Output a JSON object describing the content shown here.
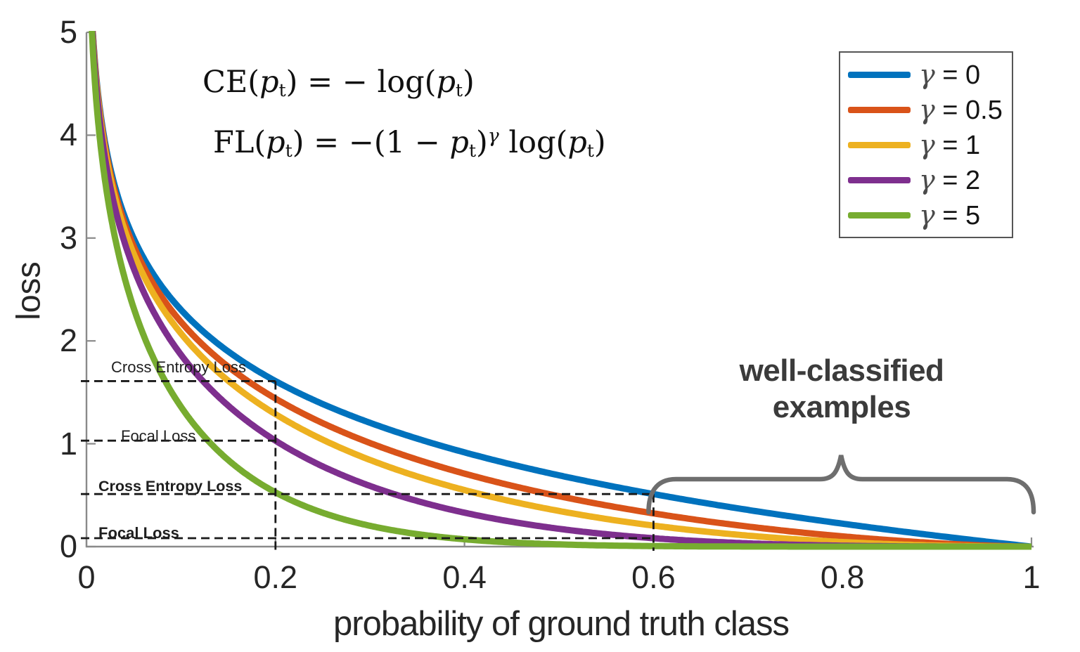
{
  "chart_data": {
    "type": "line",
    "title": "",
    "xlabel": "probability of ground truth class",
    "ylabel": "loss",
    "xlim": [
      0,
      1
    ],
    "ylim": [
      0,
      5
    ],
    "grid": false,
    "legend_position": "top-right",
    "xticks": {
      "values": [
        0,
        0.2,
        0.4,
        0.6,
        0.8,
        1
      ],
      "labels": [
        "0",
        "0.2",
        "0.4",
        "0.6",
        "0.8",
        "1"
      ]
    },
    "yticks": {
      "values": [
        0,
        1,
        2,
        3,
        4,
        5
      ],
      "labels": [
        "0",
        "1",
        "2",
        "3",
        "4",
        "5"
      ]
    },
    "sample_p": [
      0.05,
      0.1,
      0.2,
      0.3,
      0.4,
      0.5,
      0.6,
      0.7,
      0.8,
      0.9,
      1.0
    ],
    "series": [
      {
        "name": "γ = 0",
        "gamma": 0,
        "color": "#0072BD",
        "loss": [
          2.996,
          2.303,
          1.609,
          1.204,
          0.916,
          0.693,
          0.511,
          0.357,
          0.223,
          0.105,
          0
        ]
      },
      {
        "name": "γ = 0.5",
        "gamma": 0.5,
        "color": "#D95319",
        "loss": [
          2.92,
          2.185,
          1.439,
          1.007,
          0.71,
          0.49,
          0.323,
          0.195,
          0.1,
          0.033,
          0
        ]
      },
      {
        "name": "γ = 1",
        "gamma": 1,
        "color": "#EDB120",
        "loss": [
          2.846,
          2.072,
          1.288,
          0.843,
          0.55,
          0.347,
          0.204,
          0.107,
          0.045,
          0.011,
          0
        ]
      },
      {
        "name": "γ = 2",
        "gamma": 2,
        "color": "#7E2F8E",
        "loss": [
          2.704,
          1.865,
          1.03,
          0.59,
          0.33,
          0.173,
          0.082,
          0.032,
          0.009,
          0.001,
          0
        ]
      },
      {
        "name": "γ = 5",
        "gamma": 5,
        "color": "#77AC30",
        "loss": [
          2.318,
          1.36,
          0.527,
          0.202,
          0.071,
          0.022,
          0.005,
          0.001,
          0,
          0,
          0
        ]
      }
    ]
  },
  "legend": {
    "items": [
      {
        "sym": "γ",
        "rest": " = 0",
        "color": "#0072BD"
      },
      {
        "sym": "γ",
        "rest": " = 0.5",
        "color": "#D95319"
      },
      {
        "sym": "γ",
        "rest": " = 1",
        "color": "#EDB120"
      },
      {
        "sym": "γ",
        "rest": " = 2",
        "color": "#7E2F8E"
      },
      {
        "sym": "γ",
        "rest": " = 5",
        "color": "#77AC30"
      }
    ]
  },
  "formulas": {
    "ce": {
      "tokens": [
        {
          "t": "CE(",
          "k": "rm"
        },
        {
          "t": "p",
          "k": "it"
        },
        {
          "t": "t",
          "k": "sub"
        },
        {
          "t": ") = − log(",
          "k": "rm"
        },
        {
          "t": "p",
          "k": "it"
        },
        {
          "t": "t",
          "k": "sub"
        },
        {
          "t": ")",
          "k": "rm"
        }
      ]
    },
    "fl": {
      "tokens": [
        {
          "t": "FL(",
          "k": "rm"
        },
        {
          "t": "p",
          "k": "it"
        },
        {
          "t": "t",
          "k": "sub"
        },
        {
          "t": ") = −(1 − ",
          "k": "rm"
        },
        {
          "t": "p",
          "k": "it"
        },
        {
          "t": "t",
          "k": "sub"
        },
        {
          "t": ")",
          "k": "rm"
        },
        {
          "t": "γ",
          "k": "sup"
        },
        {
          "t": " log(",
          "k": "rm"
        },
        {
          "t": "p",
          "k": "it"
        },
        {
          "t": "t",
          "k": "sub"
        },
        {
          "t": ")",
          "k": "rm"
        }
      ]
    }
  },
  "annotations": {
    "h_guides": [
      {
        "label": "Cross Entropy Loss",
        "y": 1.609,
        "x_end": 0.2
      },
      {
        "label": "Focal Loss",
        "y": 1.03,
        "x_end": 0.2
      },
      {
        "label": "Cross Entropy Loss",
        "y": 0.511,
        "x_end": 0.6
      },
      {
        "label": "Focal Loss",
        "y": 0.082,
        "x_end": 0.6
      }
    ],
    "v_guides": [
      {
        "x": 0.2,
        "y_top": 1.609
      },
      {
        "x": 0.6,
        "y_top": 0.511
      }
    ],
    "brace_label": {
      "line1": "well-classified",
      "line2": "examples",
      "x_range": [
        0.6,
        1.0
      ]
    }
  },
  "colors": {
    "axis": "#8a8a8a",
    "guide": "#1a1a1a",
    "brace": "#6e6e6e",
    "tick_text": "#262626"
  }
}
